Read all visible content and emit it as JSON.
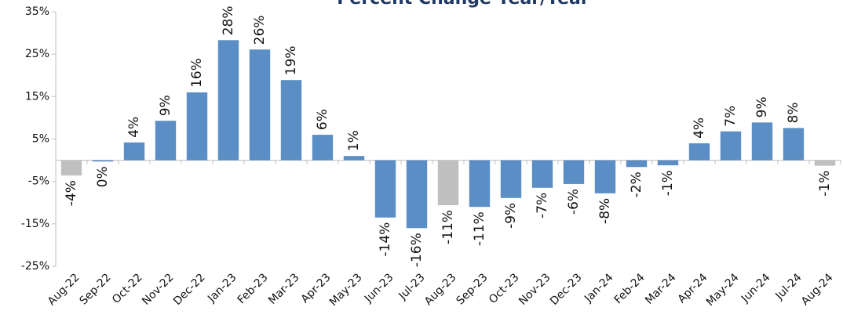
{
  "chart_data": {
    "type": "bar",
    "title": "Percent Change Year/Year",
    "categories": [
      "Aug-22",
      "Sep-22",
      "Oct-22",
      "Nov-22",
      "Dec-22",
      "Jan-23",
      "Feb-23",
      "Mar-23",
      "Apr-23",
      "May-23",
      "Jun-23",
      "Jul-23",
      "Aug-23",
      "Sep-23",
      "Oct-23",
      "Nov-23",
      "Dec-23",
      "Jan-24",
      "Feb-24",
      "Mar-24",
      "Apr-24",
      "May-24",
      "Jun-24",
      "Jul-24",
      "Aug-24"
    ],
    "values": [
      -3.6,
      -0.3,
      4.2,
      9.3,
      16.0,
      28.3,
      26.1,
      18.9,
      6.0,
      1.0,
      -13.5,
      -16.0,
      -10.6,
      -11.0,
      -8.9,
      -6.5,
      -5.6,
      -7.8,
      -1.6,
      -1.2,
      4.0,
      6.8,
      8.9,
      7.6,
      -1.3
    ],
    "value_labels": [
      "-4%",
      "0%",
      "4%",
      "9%",
      "16%",
      "28%",
      "26%",
      "19%",
      "6%",
      "1%",
      "-14%",
      "-16%",
      "-11%",
      "-11%",
      "-9%",
      "-7%",
      "-6%",
      "-8%",
      "-2%",
      "-1%",
      "4%",
      "7%",
      "9%",
      "8%",
      "-1%"
    ],
    "colors": [
      "#c0c0c0",
      "#5b8ec4",
      "#5b8ec4",
      "#5b8ec4",
      "#5b8ec4",
      "#5b8ec4",
      "#5b8ec4",
      "#5b8ec4",
      "#5b8ec4",
      "#5b8ec4",
      "#5b8ec4",
      "#5b8ec4",
      "#c0c0c0",
      "#5b8ec4",
      "#5b8ec4",
      "#5b8ec4",
      "#5b8ec4",
      "#5b8ec4",
      "#5b8ec4",
      "#5b8ec4",
      "#5b8ec4",
      "#5b8ec4",
      "#5b8ec4",
      "#5b8ec4",
      "#c0c0c0"
    ],
    "ylim": [
      -25,
      35
    ],
    "yticks": [
      {
        "value": -25,
        "label": "-25%"
      },
      {
        "value": -15,
        "label": "-15%"
      },
      {
        "value": -5,
        "label": "-5%"
      },
      {
        "value": 5,
        "label": "5%"
      },
      {
        "value": 15,
        "label": "15%"
      },
      {
        "value": 25,
        "label": "25%"
      },
      {
        "value": 35,
        "label": "35%"
      }
    ],
    "grid": false
  }
}
